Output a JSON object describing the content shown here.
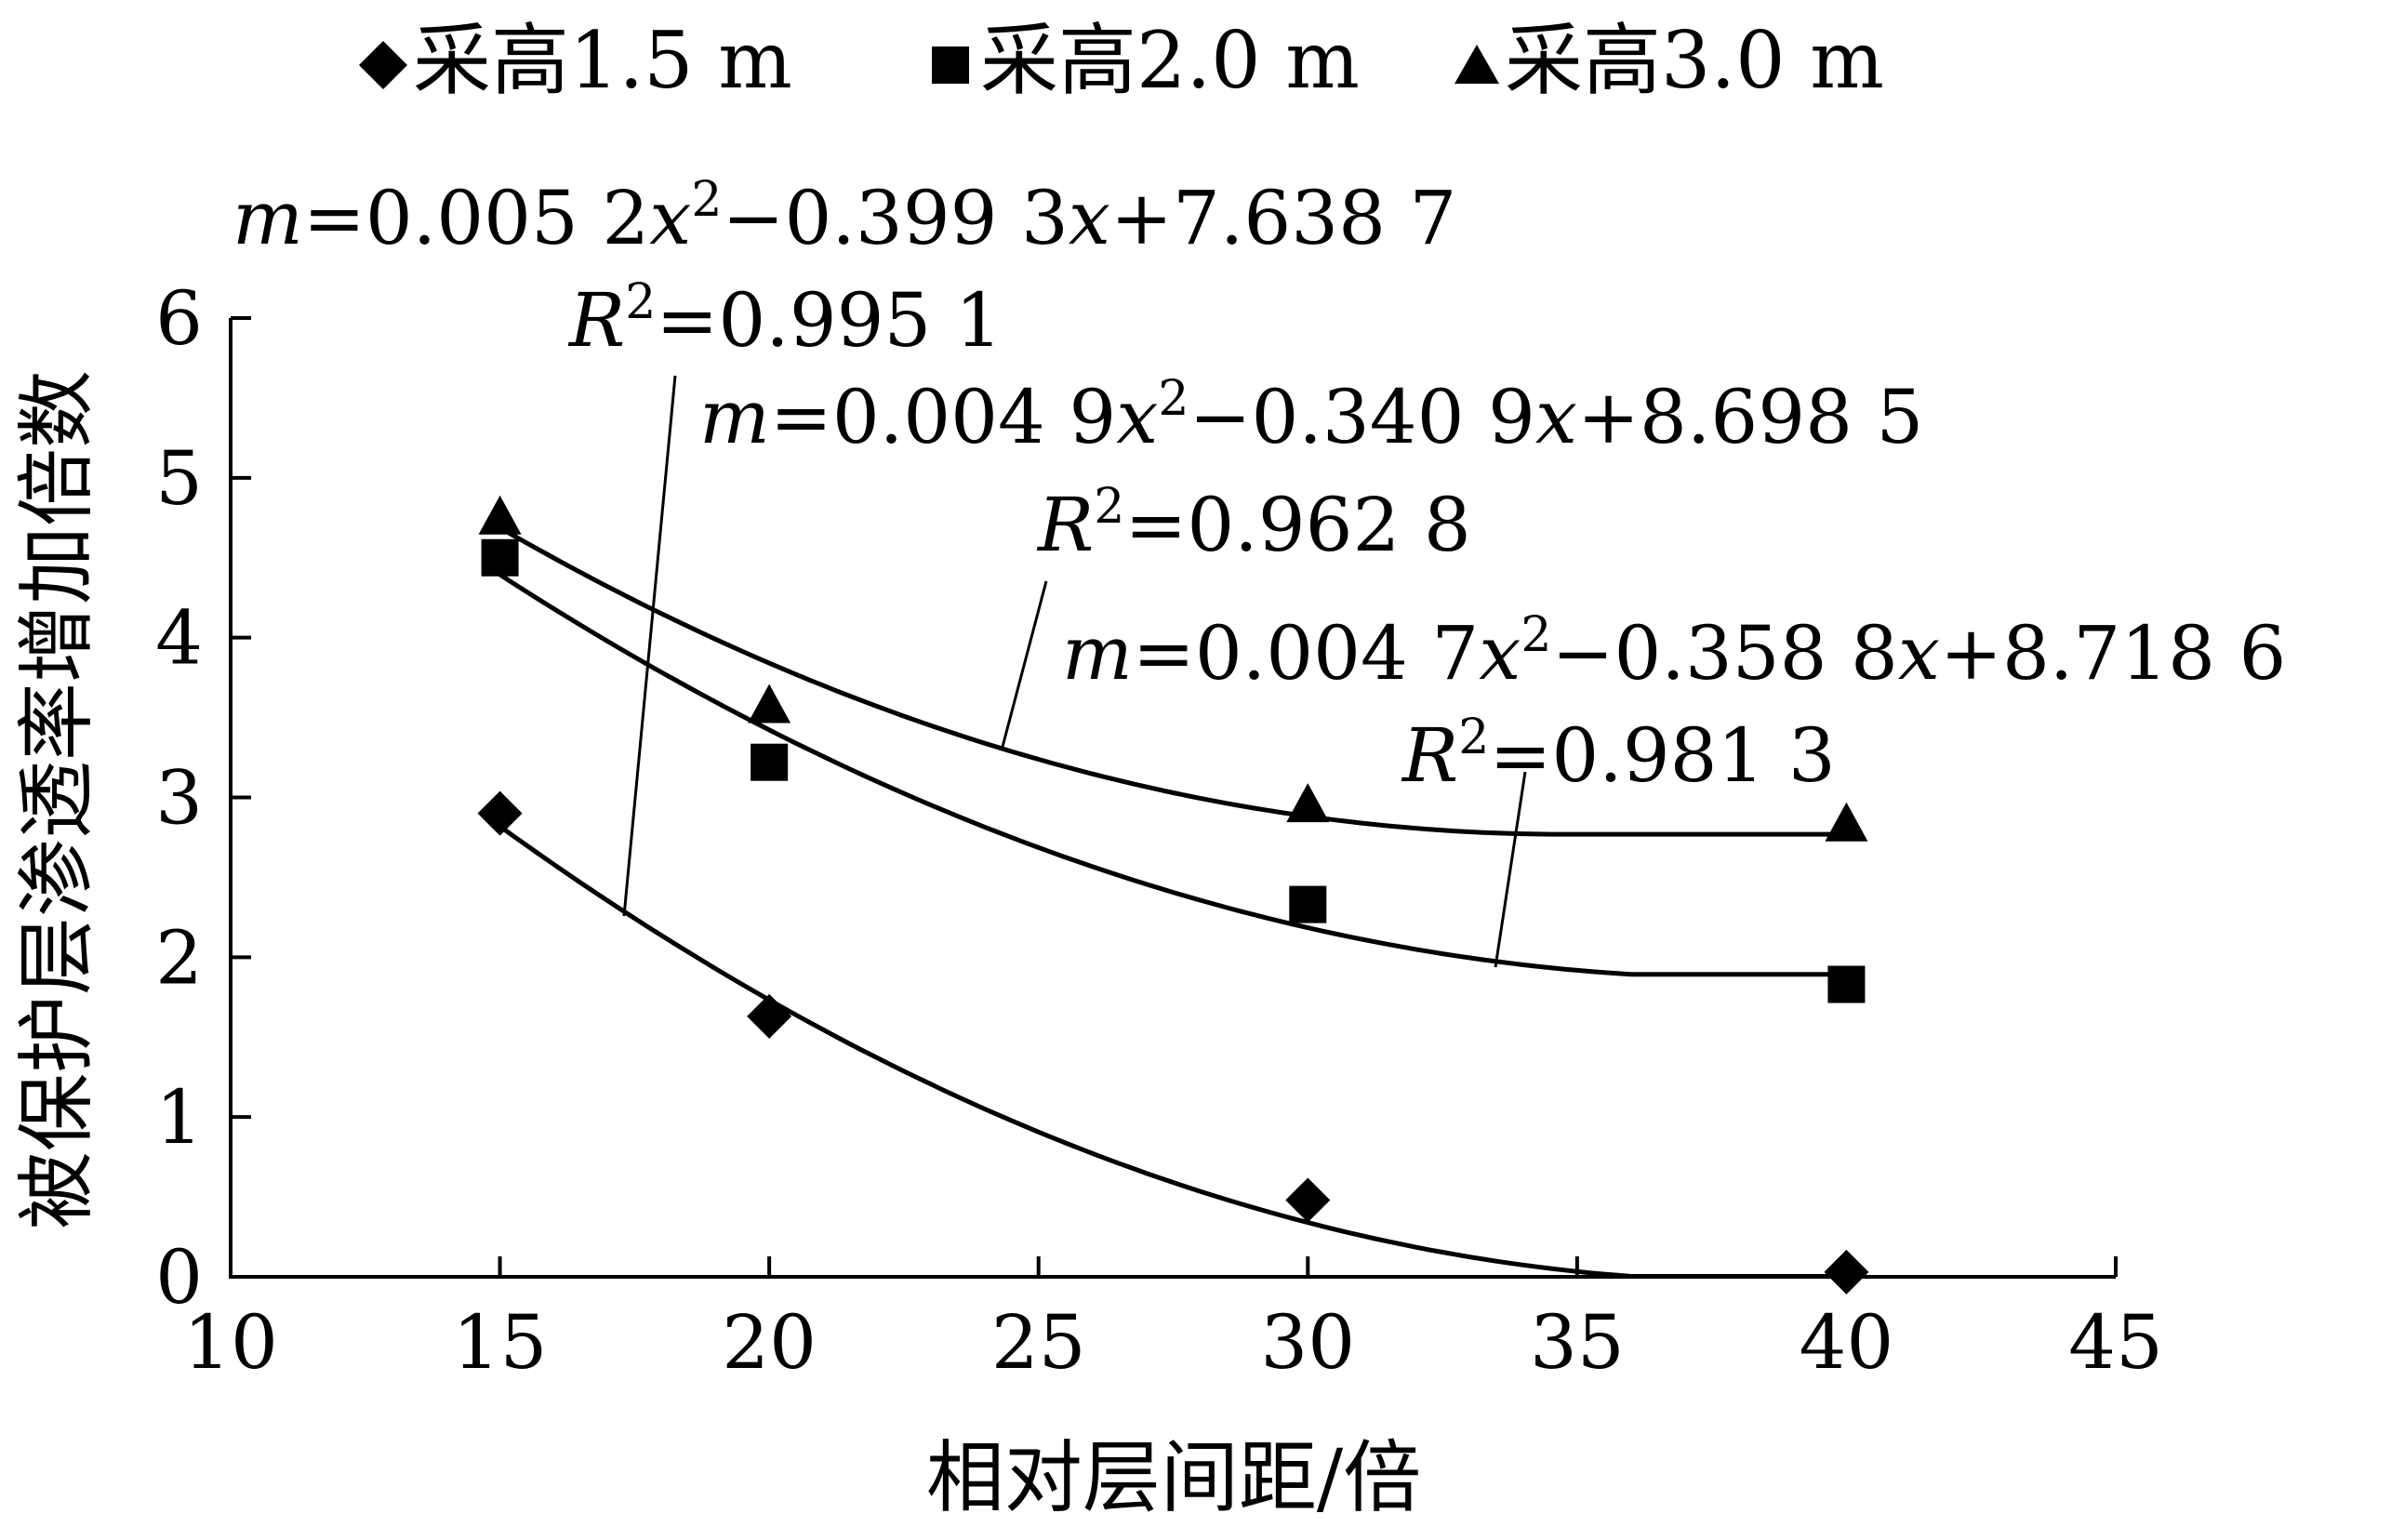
{
  "chart_data": {
    "type": "scatter",
    "xlabel": "相对层间距/倍",
    "ylabel": "被保护层渗透率增加倍数",
    "xlim": [
      10,
      45
    ],
    "ylim": [
      0,
      6
    ],
    "xticks": [
      10,
      15,
      20,
      25,
      30,
      35,
      40,
      45
    ],
    "yticks": [
      0,
      1,
      2,
      3,
      4,
      5,
      6
    ],
    "grid": false,
    "legend_position": "top",
    "series": [
      {
        "name": "采高1.5 m",
        "marker": "diamond",
        "color": "#000000",
        "x": [
          15,
          20,
          30,
          40
        ],
        "y": [
          2.9,
          1.63,
          0.48,
          0.03
        ],
        "fit": {
          "a": 0.0052,
          "b": -0.3993,
          "c": 7.6387,
          "x_end": 36,
          "equation": {
            "lhs": "m",
            "t1": "=0.005 2",
            "t2": "−0.399 3",
            "t3": "+7.638 7"
          },
          "r2": "=0.995 1"
        }
      },
      {
        "name": "采高2.0 m",
        "marker": "square",
        "color": "#000000",
        "x": [
          15,
          20,
          30,
          40
        ],
        "y": [
          4.5,
          3.22,
          2.33,
          1.83
        ],
        "fit": {
          "a": 0.0047,
          "b": -0.3588,
          "c": 8.7186,
          "x_end": 36,
          "equation": {
            "lhs": "m",
            "t1": "=0.004 7",
            "t2": "−0.358 8",
            "t3": "+8.718 6"
          },
          "r2": "=0.981 3"
        }
      },
      {
        "name": "采高3.0 m",
        "marker": "triangle",
        "color": "#000000",
        "x": [
          15,
          20,
          30,
          40
        ],
        "y": [
          4.75,
          3.57,
          2.95,
          2.83
        ],
        "fit": {
          "a": 0.0049,
          "b": -0.3409,
          "c": 8.6985,
          "x_end": 34.8,
          "equation": {
            "lhs": "m",
            "t1": "=0.004 9",
            "t2": "−0.340 9",
            "t3": "+8.698 5"
          },
          "r2": "=0.962 8"
        }
      }
    ]
  }
}
